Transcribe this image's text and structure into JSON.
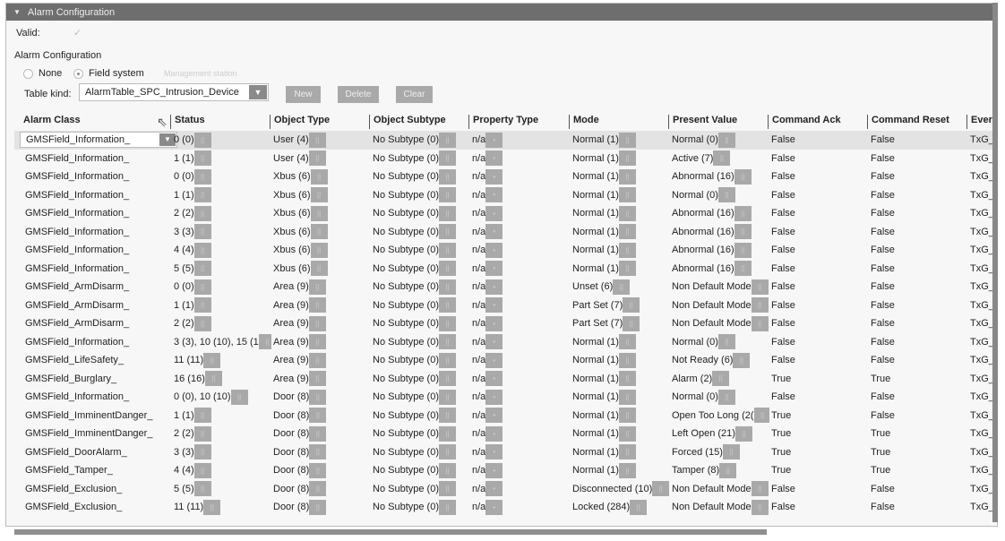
{
  "header": {
    "title": "Alarm Configuration"
  },
  "valid": {
    "label": "Valid:",
    "icon": "check-icon"
  },
  "section_label": "Alarm Configuration",
  "radios": [
    {
      "label": "None",
      "selected": false
    },
    {
      "label": "Field system",
      "selected": true
    },
    {
      "label": "Management station",
      "selected": false,
      "disabled": true
    }
  ],
  "table_kind": {
    "label": "Table kind:",
    "value": "AlarmTable_SPC_Intrusion_Device"
  },
  "buttons": {
    "new": "New",
    "delete": "Delete",
    "clear": "Clear"
  },
  "columns": [
    "Alarm Class",
    "Status",
    "Object Type",
    "Object Subtype",
    "Property Type",
    "Mode",
    "Present Value",
    "Command Ack",
    "Command Reset",
    "Ever"
  ],
  "rows": [
    [
      "GMSField_Information_",
      "0 (0)",
      "User (4)",
      "No Subtype (0)",
      "n/a",
      "Normal (1)",
      "Normal (0)",
      "False",
      "False",
      "TxG_"
    ],
    [
      "GMSField_Information_",
      "1 (1)",
      "User (4)",
      "No Subtype (0)",
      "n/a",
      "Normal (1)",
      "Active (7)",
      "False",
      "False",
      "TxG_"
    ],
    [
      "GMSField_Information_",
      "0 (0)",
      "Xbus (6)",
      "No Subtype (0)",
      "n/a",
      "Normal (1)",
      "Abnormal (16)",
      "False",
      "False",
      "TxG_"
    ],
    [
      "GMSField_Information_",
      "1 (1)",
      "Xbus (6)",
      "No Subtype (0)",
      "n/a",
      "Normal (1)",
      "Normal (0)",
      "False",
      "False",
      "TxG_"
    ],
    [
      "GMSField_Information_",
      "2 (2)",
      "Xbus (6)",
      "No Subtype (0)",
      "n/a",
      "Normal (1)",
      "Abnormal (16)",
      "False",
      "False",
      "TxG_"
    ],
    [
      "GMSField_Information_",
      "3 (3)",
      "Xbus (6)",
      "No Subtype (0)",
      "n/a",
      "Normal (1)",
      "Abnormal (16)",
      "False",
      "False",
      "TxG_"
    ],
    [
      "GMSField_Information_",
      "4 (4)",
      "Xbus (6)",
      "No Subtype (0)",
      "n/a",
      "Normal (1)",
      "Abnormal (16)",
      "False",
      "False",
      "TxG_"
    ],
    [
      "GMSField_Information_",
      "5 (5)",
      "Xbus (6)",
      "No Subtype (0)",
      "n/a",
      "Normal (1)",
      "Abnormal (16)",
      "False",
      "False",
      "TxG_"
    ],
    [
      "GMSField_ArmDisarm_",
      "0 (0)",
      "Area (9)",
      "No Subtype (0)",
      "n/a",
      "Unset (6)",
      "Non Default Mode",
      "False",
      "False",
      "TxG_"
    ],
    [
      "GMSField_ArmDisarm_",
      "1 (1)",
      "Area (9)",
      "No Subtype (0)",
      "n/a",
      "Part Set (7)",
      "Non Default Mode",
      "False",
      "False",
      "TxG_"
    ],
    [
      "GMSField_ArmDisarm_",
      "2 (2)",
      "Area (9)",
      "No Subtype (0)",
      "n/a",
      "Part Set (7)",
      "Non Default Mode",
      "False",
      "False",
      "TxG_"
    ],
    [
      "GMSField_Information_",
      "3 (3), 10 (10), 15 (1",
      "Area (9)",
      "No Subtype (0)",
      "n/a",
      "Normal (1)",
      "Normal (0)",
      "False",
      "False",
      "TxG_"
    ],
    [
      "GMSField_LifeSafety_",
      "11 (11)",
      "Area (9)",
      "No Subtype (0)",
      "n/a",
      "Normal (1)",
      "Not Ready (6)",
      "False",
      "False",
      "TxG_"
    ],
    [
      "GMSField_Burglary_",
      "16 (16)",
      "Area (9)",
      "No Subtype (0)",
      "n/a",
      "Normal (1)",
      "Alarm (2)",
      "True",
      "True",
      "TxG_"
    ],
    [
      "GMSField_Information_",
      "0 (0), 10 (10)",
      "Door (8)",
      "No Subtype (0)",
      "n/a",
      "Normal (1)",
      "Normal (0)",
      "False",
      "False",
      "TxG_"
    ],
    [
      "GMSField_ImminentDanger_",
      "1 (1)",
      "Door (8)",
      "No Subtype (0)",
      "n/a",
      "Normal (1)",
      "Open Too Long (2(",
      "True",
      "False",
      "TxG_"
    ],
    [
      "GMSField_ImminentDanger_",
      "2 (2)",
      "Door (8)",
      "No Subtype (0)",
      "n/a",
      "Normal (1)",
      "Left Open (21)",
      "True",
      "True",
      "TxG_"
    ],
    [
      "GMSField_DoorAlarm_",
      "3 (3)",
      "Door (8)",
      "No Subtype (0)",
      "n/a",
      "Normal (1)",
      "Forced (15)",
      "True",
      "True",
      "TxG_"
    ],
    [
      "GMSField_Tamper_",
      "4 (4)",
      "Door (8)",
      "No Subtype (0)",
      "n/a",
      "Normal (1)",
      "Tamper (8)",
      "True",
      "True",
      "TxG_"
    ],
    [
      "GMSField_Exclusion_",
      "5 (5)",
      "Door (8)",
      "No Subtype (0)",
      "n/a",
      "Disconnected (10)",
      "Non Default Mode",
      "False",
      "False",
      "TxG_"
    ],
    [
      "GMSField_Exclusion_",
      "11 (11)",
      "Door (8)",
      "No Subtype (0)",
      "n/a",
      "Locked (284)",
      "Non Default Mode",
      "False",
      "False",
      "TxG_"
    ]
  ]
}
